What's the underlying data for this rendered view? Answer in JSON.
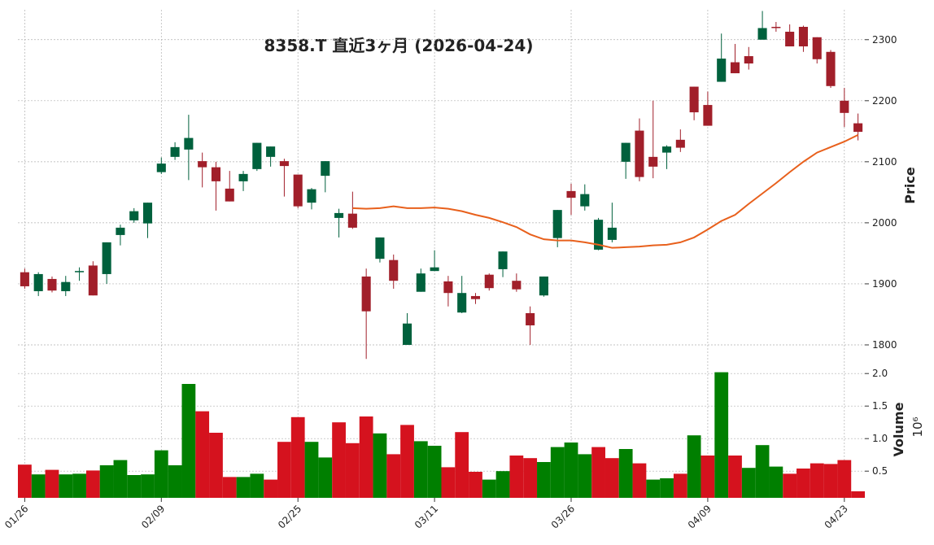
{
  "chart_data": {
    "type": "candlestick",
    "title": "8358.T  直近3ヶ月  (2026-04-24)",
    "categories": [
      "01/26",
      null,
      null,
      null,
      null,
      null,
      null,
      null,
      null,
      null,
      "02/09",
      null,
      null,
      null,
      null,
      null,
      null,
      null,
      null,
      null,
      "02/25",
      null,
      null,
      null,
      null,
      null,
      null,
      null,
      null,
      null,
      "03/11",
      null,
      null,
      null,
      null,
      null,
      null,
      null,
      null,
      null,
      "03/26",
      null,
      null,
      null,
      null,
      null,
      null,
      null,
      null,
      null,
      "04/09",
      null,
      null,
      null,
      null,
      null,
      null,
      null,
      null,
      null,
      "04/23",
      null
    ],
    "open": [
      1919,
      1888,
      1908,
      1888,
      1919,
      1930,
      1916,
      1980,
      2004,
      1999,
      2083,
      2108,
      2120,
      2101,
      2091,
      2056,
      2068,
      2088,
      2108,
      2101,
      2079,
      2033,
      2077,
      2008,
      2015,
      1912,
      1941,
      1939,
      1800,
      1887,
      1921,
      1904,
      1853,
      1880,
      1915,
      1924,
      1905,
      1852,
      1881,
      1975,
      2052,
      2027,
      1956,
      1972,
      2100,
      2151,
      2108,
      2115,
      2136,
      2223,
      2193,
      2231,
      2263,
      2273,
      2300,
      2321,
      2313,
      2321,
      2304,
      2280,
      2200,
      2163
    ],
    "high": [
      1925,
      1919,
      1912,
      1913,
      1927,
      1937,
      1968,
      1997,
      2024,
      2033,
      2107,
      2132,
      2177,
      2115,
      2100,
      2085,
      2085,
      2131,
      2125,
      2105,
      2079,
      2057,
      2101,
      2023,
      2051,
      1925,
      1976,
      1948,
      1852,
      1925,
      1955,
      1913,
      1913,
      1885,
      1917,
      1953,
      1917,
      1863,
      1912,
      2021,
      2064,
      2063,
      2008,
      2033,
      2131,
      2171,
      2200,
      2127,
      2153,
      2223,
      2215,
      2310,
      2293,
      2288,
      2347,
      2329,
      2325,
      2323,
      2304,
      2283,
      2221,
      2179
    ],
    "low": [
      1892,
      1880,
      1886,
      1880,
      1905,
      1881,
      1900,
      1963,
      2000,
      1975,
      2080,
      2103,
      2070,
      2058,
      2020,
      2035,
      2052,
      2085,
      2092,
      2043,
      2024,
      2022,
      2050,
      1976,
      1990,
      1777,
      1935,
      1892,
      1800,
      1887,
      1921,
      1863,
      1852,
      1867,
      1889,
      1911,
      1887,
      1800,
      1879,
      1960,
      2013,
      2020,
      1955,
      1968,
      2072,
      2068,
      2073,
      2088,
      2116,
      2168,
      2159,
      2231,
      2245,
      2251,
      2300,
      2313,
      2289,
      2280,
      2261,
      2221,
      2157,
      2135
    ],
    "close": [
      1896,
      1916,
      1889,
      1903,
      1921,
      1881,
      1968,
      1992,
      2019,
      2033,
      2097,
      2124,
      2139,
      2091,
      2068,
      2035,
      2080,
      2131,
      2125,
      2093,
      2027,
      2055,
      2101,
      2016,
      1992,
      1855,
      1976,
      1905,
      1835,
      1917,
      1927,
      1885,
      1885,
      1875,
      1893,
      1953,
      1891,
      1832,
      1912,
      2021,
      2041,
      2047,
      2005,
      1992,
      2131,
      2075,
      2092,
      2125,
      2123,
      2181,
      2159,
      2269,
      2245,
      2261,
      2319,
      2319,
      2289,
      2289,
      2268,
      2224,
      2180,
      2149
    ],
    "up_color": "#00613d",
    "down_color": "#a11f2a",
    "ma": {
      "color": "#e8601c",
      "values": [
        null,
        null,
        null,
        null,
        null,
        null,
        null,
        null,
        null,
        null,
        null,
        null,
        null,
        null,
        null,
        null,
        null,
        null,
        null,
        null,
        null,
        null,
        null,
        null,
        2024,
        2023,
        2024,
        2027,
        2024,
        2024,
        2025,
        2023,
        2019,
        2013,
        2008,
        2001,
        1993,
        1981,
        1973,
        1971,
        1971,
        1968,
        1964,
        1959,
        1960,
        1961,
        1963,
        1964,
        1968,
        1976,
        1989,
        2003,
        2013,
        2031,
        2048,
        2065,
        2083,
        2100,
        2115,
        2124,
        2133,
        2144
      ]
    },
    "ylabel": "Price",
    "ylim": [
      1768,
      2349
    ],
    "yticks": [
      1800,
      1900,
      2000,
      2100,
      2200,
      2300
    ],
    "grid": true,
    "volume": {
      "ylabel": "Volume",
      "offset_label": "10⁶",
      "values": [
        0.6,
        0.45,
        0.52,
        0.45,
        0.46,
        0.51,
        0.59,
        0.67,
        0.44,
        0.45,
        0.82,
        0.59,
        1.84,
        1.42,
        1.09,
        0.41,
        0.41,
        0.46,
        0.37,
        0.95,
        1.33,
        0.95,
        0.71,
        1.25,
        0.93,
        1.34,
        1.08,
        0.76,
        1.21,
        0.96,
        0.89,
        0.56,
        1.1,
        0.49,
        0.37,
        0.5,
        0.74,
        0.7,
        0.64,
        0.87,
        0.94,
        0.76,
        0.87,
        0.7,
        0.84,
        0.62,
        0.37,
        0.39,
        0.46,
        1.05,
        0.74,
        2.02,
        0.74,
        0.55,
        0.9,
        0.57,
        0.46,
        0.54,
        0.62,
        0.61,
        0.67,
        0.19
      ],
      "colors": [
        "#d5121e",
        "#007f00",
        "#d5121e",
        "#007f00",
        "#007f00",
        "#d5121e",
        "#007f00",
        "#007f00",
        "#007f00",
        "#007f00",
        "#007f00",
        "#007f00",
        "#007f00",
        "#d5121e",
        "#d5121e",
        "#d5121e",
        "#007f00",
        "#007f00",
        "#d5121e",
        "#d5121e",
        "#d5121e",
        "#007f00",
        "#007f00",
        "#d5121e",
        "#d5121e",
        "#d5121e",
        "#007f00",
        "#d5121e",
        "#d5121e",
        "#007f00",
        "#007f00",
        "#d5121e",
        "#d5121e",
        "#d5121e",
        "#007f00",
        "#007f00",
        "#d5121e",
        "#d5121e",
        "#007f00",
        "#007f00",
        "#007f00",
        "#007f00",
        "#d5121e",
        "#d5121e",
        "#007f00",
        "#d5121e",
        "#007f00",
        "#007f00",
        "#d5121e",
        "#007f00",
        "#d5121e",
        "#007f00",
        "#d5121e",
        "#007f00",
        "#007f00",
        "#007f00",
        "#d5121e",
        "#d5121e",
        "#d5121e",
        "#d5121e",
        "#d5121e",
        "#d5121e"
      ],
      "ylim": [
        0.09,
        2.09
      ],
      "yticks": [
        0.5,
        {
          "value": 1,
          "label": "1.0"
        },
        1.5,
        {
          "value": 2,
          "label": "2.0"
        }
      ]
    }
  }
}
